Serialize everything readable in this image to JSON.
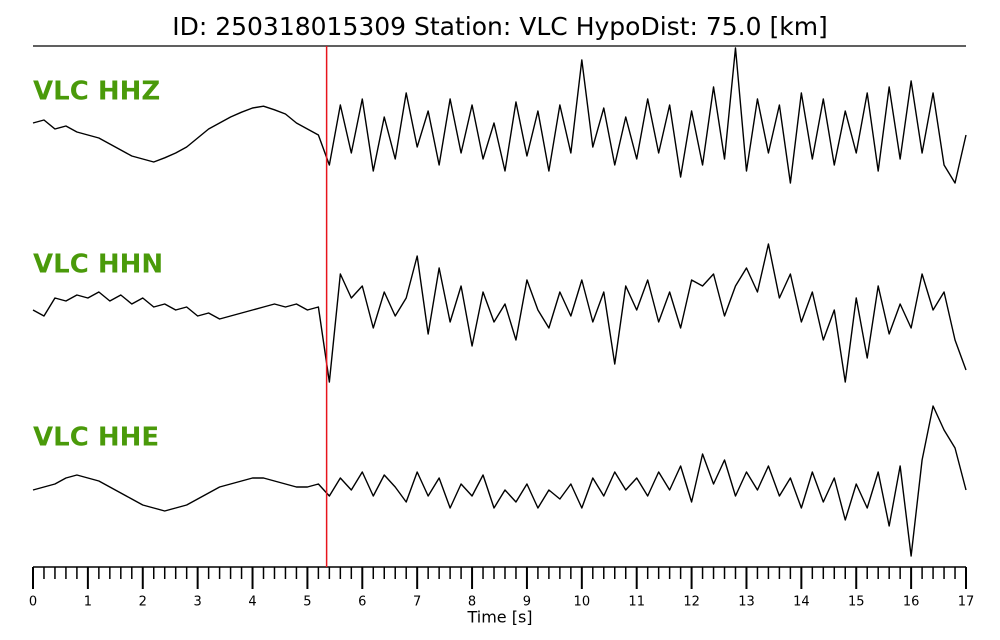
{
  "chart_data": {
    "type": "seismogram",
    "title": "ID: 250318015309   Station: VLC   HypoDist:     75.0 [km]",
    "xlabel": "Time [s]",
    "label_color": "#4a9a0a",
    "xlim": [
      0,
      17
    ],
    "xticks": [
      0,
      1,
      2,
      3,
      4,
      5,
      6,
      7,
      8,
      9,
      10,
      11,
      12,
      13,
      14,
      15,
      16,
      17
    ],
    "xminorticks": [
      0.2,
      0.4,
      0.6,
      0.8,
      1.2,
      1.4,
      1.6,
      1.8,
      2.2,
      2.4,
      2.6,
      2.8,
      3.2,
      3.4,
      3.6,
      3.8,
      4.2,
      4.4,
      4.6,
      4.8,
      5.2,
      5.4,
      5.6,
      5.8,
      6.2,
      6.4,
      6.6,
      6.8,
      7.2,
      7.4,
      7.6,
      7.8,
      8.2,
      8.4,
      8.6,
      8.8,
      9.2,
      9.4,
      9.6,
      9.8,
      10.2,
      10.4,
      10.6,
      10.8,
      11.2,
      11.4,
      11.6,
      11.8,
      12.2,
      12.4,
      12.6,
      12.8,
      13.2,
      13.4,
      13.6,
      13.8,
      14.2,
      14.4,
      14.6,
      14.8,
      15.2,
      15.4,
      15.6,
      15.8,
      16.2,
      16.4,
      16.6,
      16.8
    ],
    "pick": {
      "x": 5.35,
      "color": "#e8141c"
    },
    "x": [
      0,
      0.2,
      0.4,
      0.6,
      0.8,
      1,
      1.2,
      1.4,
      1.6,
      1.8,
      2,
      2.2,
      2.4,
      2.6,
      2.8,
      3,
      3.2,
      3.4,
      3.6,
      3.8,
      4,
      4.2,
      4.4,
      4.6,
      4.8,
      5,
      5.2,
      5.4,
      5.6,
      5.8,
      6,
      6.2,
      6.4,
      6.6,
      6.8,
      7,
      7.2,
      7.4,
      7.6,
      7.8,
      8,
      8.2,
      8.4,
      8.6,
      8.8,
      9,
      9.2,
      9.4,
      9.6,
      9.8,
      10,
      10.2,
      10.4,
      10.6,
      10.8,
      11,
      11.2,
      11.4,
      11.6,
      11.8,
      12,
      12.2,
      12.4,
      12.6,
      12.8,
      13,
      13.2,
      13.4,
      13.6,
      13.8,
      14,
      14.2,
      14.4,
      14.6,
      14.8,
      15,
      15.2,
      15.4,
      15.6,
      15.8,
      16,
      16.2,
      16.4,
      16.6,
      16.8,
      17
    ],
    "series": [
      {
        "name": "VLC HHZ",
        "color": "#000000",
        "values": [
          0.2,
          0.25,
          0.1,
          0.15,
          0.05,
          0.0,
          -0.05,
          -0.15,
          -0.25,
          -0.35,
          -0.4,
          -0.45,
          -0.38,
          -0.3,
          -0.2,
          -0.05,
          0.1,
          0.2,
          0.3,
          0.38,
          0.45,
          0.48,
          0.42,
          0.35,
          0.2,
          0.1,
          0.0,
          -0.5,
          0.5,
          -0.3,
          0.6,
          -0.6,
          0.3,
          -0.4,
          0.7,
          -0.2,
          0.4,
          -0.5,
          0.6,
          -0.3,
          0.5,
          -0.4,
          0.2,
          -0.6,
          0.55,
          -0.35,
          0.4,
          -0.6,
          0.5,
          -0.3,
          1.25,
          -0.2,
          0.45,
          -0.5,
          0.3,
          -0.4,
          0.6,
          -0.3,
          0.5,
          -0.7,
          0.4,
          -0.5,
          0.8,
          -0.4,
          1.45,
          -0.6,
          0.6,
          -0.3,
          0.5,
          -0.8,
          0.7,
          -0.4,
          0.6,
          -0.5,
          0.4,
          -0.3,
          0.7,
          -0.6,
          0.8,
          -0.4,
          0.9,
          -0.3,
          0.7,
          -0.5,
          -0.8,
          0.0
        ]
      },
      {
        "name": "VLC HHN",
        "color": "#000000",
        "values": [
          0.0,
          -0.1,
          0.2,
          0.15,
          0.25,
          0.2,
          0.3,
          0.15,
          0.25,
          0.1,
          0.2,
          0.05,
          0.1,
          0.0,
          0.05,
          -0.1,
          -0.05,
          -0.15,
          -0.1,
          -0.05,
          0.0,
          0.05,
          0.1,
          0.05,
          0.1,
          0.0,
          0.05,
          -1.2,
          0.6,
          0.2,
          0.4,
          -0.3,
          0.3,
          -0.1,
          0.2,
          0.9,
          -0.4,
          0.7,
          -0.2,
          0.4,
          -0.6,
          0.3,
          -0.2,
          0.1,
          -0.5,
          0.5,
          0.0,
          -0.3,
          0.3,
          -0.1,
          0.5,
          -0.2,
          0.3,
          -0.9,
          0.4,
          0.0,
          0.5,
          -0.2,
          0.3,
          -0.3,
          0.5,
          0.4,
          0.6,
          -0.1,
          0.4,
          0.7,
          0.3,
          1.1,
          0.2,
          0.6,
          -0.2,
          0.3,
          -0.5,
          0.0,
          -1.2,
          0.2,
          -0.8,
          0.4,
          -0.4,
          0.1,
          -0.3,
          0.6,
          0.0,
          0.3,
          -0.5,
          -1.0
        ]
      },
      {
        "name": "VLC HHE",
        "color": "#000000",
        "values": [
          0.0,
          0.05,
          0.1,
          0.2,
          0.25,
          0.2,
          0.15,
          0.05,
          -0.05,
          -0.15,
          -0.25,
          -0.3,
          -0.35,
          -0.3,
          -0.25,
          -0.15,
          -0.05,
          0.05,
          0.1,
          0.15,
          0.2,
          0.2,
          0.15,
          0.1,
          0.05,
          0.05,
          0.1,
          -0.1,
          0.2,
          0.0,
          0.3,
          -0.1,
          0.25,
          0.05,
          -0.2,
          0.3,
          -0.1,
          0.2,
          -0.3,
          0.1,
          -0.1,
          0.25,
          -0.3,
          0.0,
          -0.2,
          0.1,
          -0.3,
          0.0,
          -0.15,
          0.1,
          -0.3,
          0.2,
          -0.1,
          0.3,
          0.0,
          0.2,
          -0.1,
          0.3,
          0.0,
          0.4,
          -0.2,
          0.6,
          0.1,
          0.5,
          -0.1,
          0.3,
          0.0,
          0.4,
          -0.1,
          0.2,
          -0.3,
          0.3,
          -0.2,
          0.2,
          -0.5,
          0.1,
          -0.3,
          0.3,
          -0.6,
          0.4,
          -1.1,
          0.5,
          1.4,
          1.0,
          0.7,
          0.0
        ]
      }
    ]
  }
}
